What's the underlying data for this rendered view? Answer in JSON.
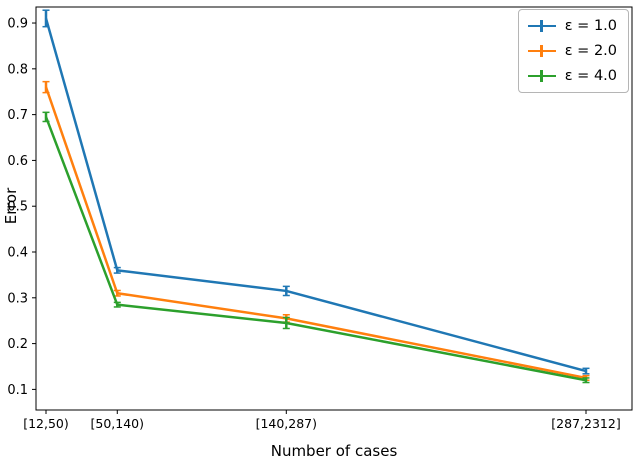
{
  "figure": {
    "background": "#ffffff"
  },
  "chart_data": {
    "type": "line",
    "title": "",
    "xlabel": "Number of cases",
    "ylabel": "Error",
    "categories": [
      "[12,50)",
      "[50,140)",
      "[140,287)",
      "[287,2312]"
    ],
    "x_positions": [
      0.0,
      0.132,
      0.445,
      1.0
    ],
    "y_ticks": [
      0.1,
      0.2,
      0.3,
      0.4,
      0.5,
      0.6,
      0.7,
      0.8,
      0.9
    ],
    "ylim": [
      0.055,
      0.935
    ],
    "grid": false,
    "legend": {
      "position": "upper right"
    },
    "series": [
      {
        "name": "ε = 1.0",
        "color": "#1f77b4",
        "values": [
          0.91,
          0.36,
          0.315,
          0.14
        ],
        "errors": [
          0.018,
          0.006,
          0.01,
          0.006
        ]
      },
      {
        "name": "ε = 2.0",
        "color": "#ff7f0e",
        "values": [
          0.76,
          0.31,
          0.255,
          0.125
        ],
        "errors": [
          0.012,
          0.006,
          0.008,
          0.005
        ]
      },
      {
        "name": "ε = 4.0",
        "color": "#2ca02c",
        "values": [
          0.695,
          0.285,
          0.245,
          0.12
        ],
        "errors": [
          0.01,
          0.005,
          0.012,
          0.005
        ]
      }
    ]
  }
}
